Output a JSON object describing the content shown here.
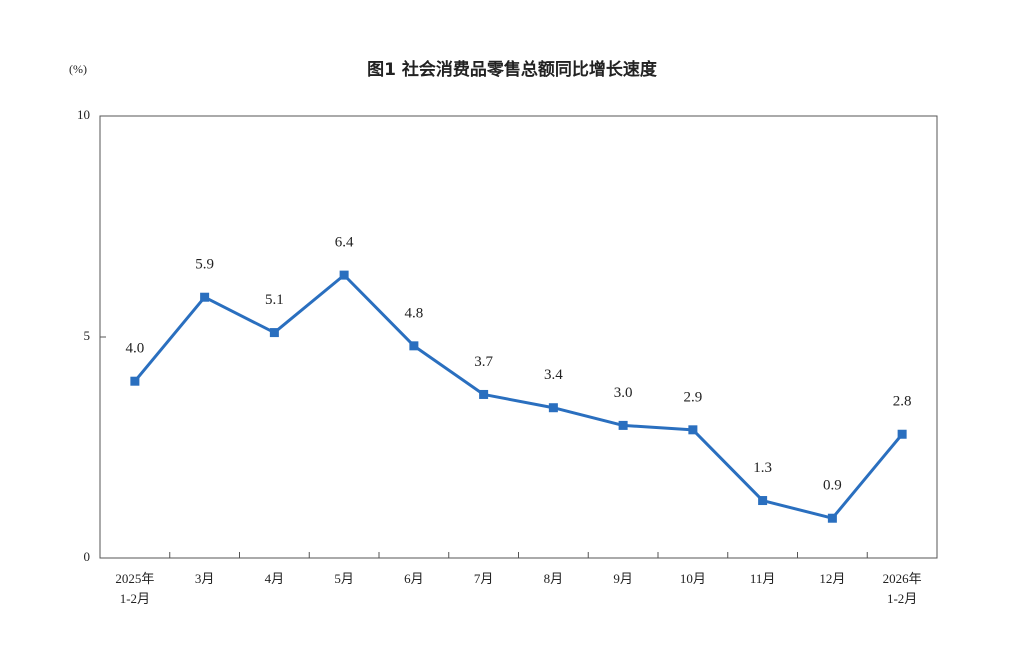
{
  "chart_data": {
    "type": "line",
    "title": "图1 社会消费品零售总额同比增长速度",
    "y_unit": "(%)",
    "categories": [
      [
        "2025年",
        "1-2月"
      ],
      [
        "3月"
      ],
      [
        "4月"
      ],
      [
        "5月"
      ],
      [
        "6月"
      ],
      [
        "7月"
      ],
      [
        "8月"
      ],
      [
        "9月"
      ],
      [
        "10月"
      ],
      [
        "11月"
      ],
      [
        "12月"
      ],
      [
        "2026年",
        "1-2月"
      ]
    ],
    "values": [
      4.0,
      5.9,
      5.1,
      6.4,
      4.8,
      3.7,
      3.4,
      3.0,
      2.9,
      1.3,
      0.9,
      2.8
    ],
    "value_labels": [
      "4.0",
      "5.9",
      "5.1",
      "6.4",
      "4.8",
      "3.7",
      "3.4",
      "3.0",
      "2.9",
      "1.3",
      "0.9",
      "2.8"
    ],
    "color": "#2a6fbf",
    "ylim": [
      0,
      10
    ],
    "yticks": [
      0,
      5,
      10
    ],
    "grid": false
  }
}
